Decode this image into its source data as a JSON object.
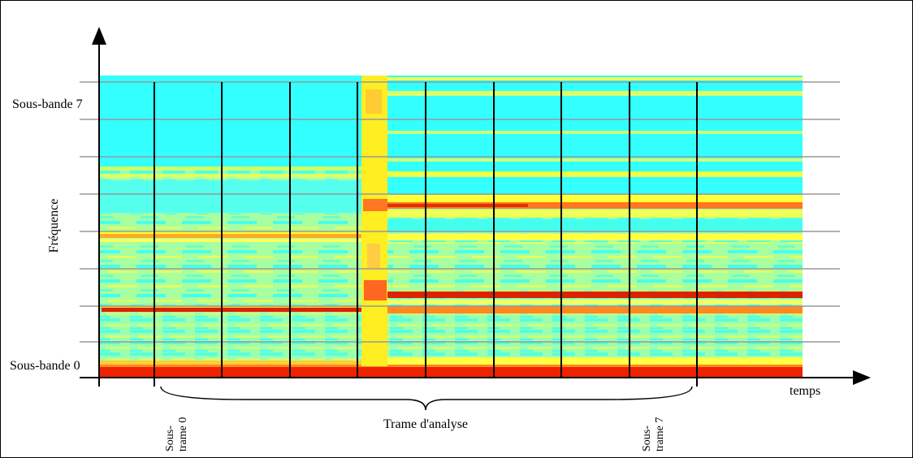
{
  "axes": {
    "y_label": "Fréquence",
    "x_label": "temps"
  },
  "labels": {
    "top_band": "Sous-bande 7",
    "bottom_band": "Sous-bande 0",
    "frame": "Trame d'analyse",
    "first_subframe": [
      "Sous-",
      "trame 0"
    ],
    "last_subframe": [
      "Sous-",
      "trame 7"
    ]
  }
}
